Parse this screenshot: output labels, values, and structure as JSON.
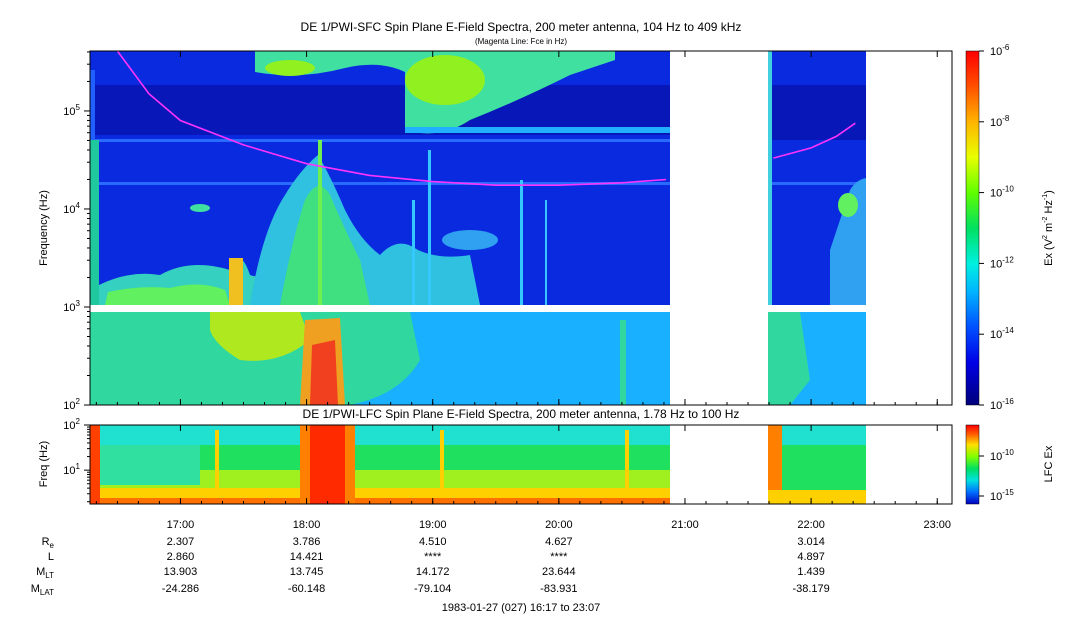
{
  "chart_data": [
    {
      "type": "heatmap",
      "title": "DE 1/PWI-SFC  Spin Plane E-Field Spectra, 200 meter antenna, 104 Hz to 409 kHz",
      "subtitle": "(Magenta Line: Fce in Hz)",
      "ylabel": "Frequency (Hz)",
      "yscale": "log",
      "ylim": [
        100,
        409000
      ],
      "y_ticks": [
        {
          "value": 100,
          "base": "10",
          "exp": "2"
        },
        {
          "value": 1000,
          "base": "10",
          "exp": "3"
        },
        {
          "value": 10000,
          "base": "10",
          "exp": "4"
        },
        {
          "value": 100000,
          "base": "10",
          "exp": "5"
        }
      ],
      "xlim_hours": [
        16.283,
        23.117
      ],
      "data_gaps_hours": [
        [
          20.883,
          21.65
        ],
        [
          22.4,
          23.117
        ]
      ],
      "colorbar": {
        "label_parts": [
          "Ex (V",
          "2",
          " m",
          "-2",
          " Hz",
          "-1",
          ")"
        ],
        "scale": "log",
        "range": [
          1e-16,
          1e-06
        ],
        "ticks": [
          {
            "value": 1e-06,
            "base": "10",
            "exp": "-6"
          },
          {
            "value": 1e-08,
            "base": "10",
            "exp": "-8"
          },
          {
            "value": 1e-10,
            "base": "10",
            "exp": "-10"
          },
          {
            "value": 1e-12,
            "base": "10",
            "exp": "-12"
          },
          {
            "value": 1e-14,
            "base": "10",
            "exp": "-14"
          },
          {
            "value": 1e-16,
            "base": "10",
            "exp": "-16"
          }
        ]
      },
      "fce_line": {
        "color": "#ff33ff",
        "segments": [
          [
            [
              16.5,
              409000
            ],
            [
              16.75,
              150000
            ],
            [
              17.0,
              80000
            ],
            [
              17.5,
              45000
            ],
            [
              18.0,
              29000
            ],
            [
              18.5,
              22000
            ],
            [
              19.0,
              19000
            ],
            [
              19.5,
              17500
            ],
            [
              20.0,
              17500
            ],
            [
              20.5,
              18500
            ],
            [
              20.85,
              20000
            ]
          ],
          [
            [
              21.7,
              33000
            ],
            [
              22.0,
              42000
            ],
            [
              22.2,
              55000
            ],
            [
              22.35,
              75000
            ]
          ]
        ]
      }
    },
    {
      "type": "heatmap",
      "title": "DE 1/PWI-LFC  Spin Plane E-Field Spectra, 200 meter antenna, 1.78 Hz to 100 Hz",
      "ylabel": "Freq (Hz)",
      "yscale": "log",
      "ylim": [
        1.78,
        100
      ],
      "y_ticks": [
        {
          "value": 100,
          "base": "10",
          "exp": "2"
        },
        {
          "value": 10,
          "base": "10",
          "exp": "1"
        }
      ],
      "colorbar": {
        "label": "LFC Ex",
        "scale": "log",
        "ticks": [
          {
            "value": 1e-10,
            "base": "10",
            "exp": "-10"
          },
          {
            "value": 1e-15,
            "base": "10",
            "exp": "-15"
          }
        ]
      }
    }
  ],
  "x_axis": {
    "ticks": [
      {
        "value": 17.0,
        "label": "17:00"
      },
      {
        "value": 18.0,
        "label": "18:00"
      },
      {
        "value": 19.0,
        "label": "19:00"
      },
      {
        "value": 20.0,
        "label": "20:00"
      },
      {
        "value": 21.0,
        "label": "21:00"
      },
      {
        "value": 22.0,
        "label": "22:00"
      },
      {
        "value": 23.0,
        "label": "23:00"
      }
    ]
  },
  "ephemeris": {
    "rows": [
      {
        "label": "R",
        "sub": "e",
        "values": [
          "2.307",
          "3.786",
          "4.510",
          "4.627",
          "",
          "3.014",
          ""
        ]
      },
      {
        "label": "L",
        "sub": "",
        "values": [
          "2.860",
          "14.421",
          "****",
          "****",
          "",
          "4.897",
          ""
        ]
      },
      {
        "label": "M",
        "sub": "LT",
        "values": [
          "13.903",
          "13.745",
          "14.172",
          "23.644",
          "",
          "1.439",
          ""
        ]
      },
      {
        "label": "M",
        "sub": "LAT",
        "values": [
          "-24.286",
          "-60.148",
          "-79.104",
          "-83.931",
          "",
          "-38.179",
          ""
        ]
      }
    ]
  },
  "footer": "1983-01-27 (027) 16:17 to 23:07"
}
